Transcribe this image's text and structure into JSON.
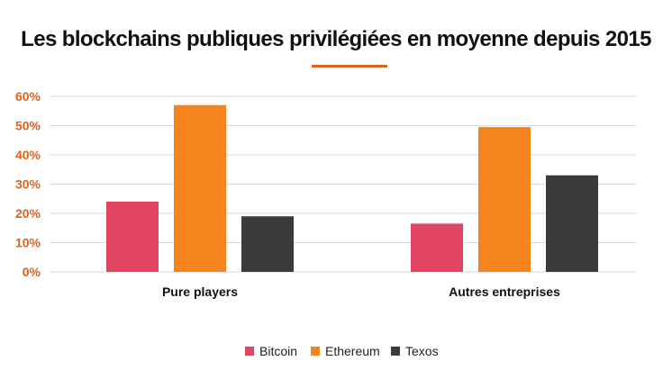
{
  "chart_data": {
    "type": "bar",
    "title": "Les blockchains publiques privilégiées en moyenne depuis 2015",
    "categories": [
      "Pure players",
      "Autres entreprises"
    ],
    "series": [
      {
        "name": "Bitcoin",
        "color": "#e04563",
        "values": [
          24,
          16.5
        ]
      },
      {
        "name": "Ethereum",
        "color": "#f5841f",
        "values": [
          57,
          49.5
        ]
      },
      {
        "name": "Texos",
        "color": "#3b3b3b",
        "values": [
          19,
          33
        ]
      }
    ],
    "yticks": [
      "0%",
      "10%",
      "20%",
      "30%",
      "40%",
      "50%",
      "60%"
    ],
    "ylim": [
      0,
      60
    ],
    "ytick_color": "#d9631f",
    "grid": true,
    "legend_position": "bottom",
    "xlabel": "",
    "ylabel": ""
  }
}
